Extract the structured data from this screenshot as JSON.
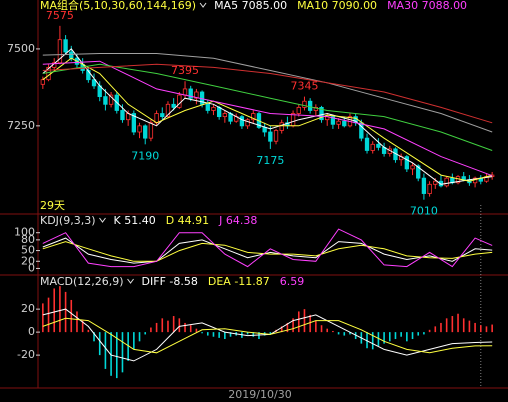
{
  "chart_data": [
    {
      "type": "candlestick",
      "title": "MA组合(5,10,30,60,144,169)",
      "footnote": "29天",
      "cursor": {
        "x": 77,
        "label": "2019/10/30"
      },
      "up_color": "#ff3030",
      "down_color": "#00d8d8",
      "ylim": [
        6970,
        7620
      ],
      "yticks": [
        7500,
        7250
      ],
      "open": [
        7385,
        7400,
        7440,
        7455,
        7530,
        7490,
        7470,
        7450,
        7430,
        7400,
        7380,
        7345,
        7320,
        7350,
        7300,
        7270,
        7290,
        7230,
        7250,
        7210,
        7260,
        7290,
        7280,
        7320,
        7310,
        7350,
        7370,
        7340,
        7360,
        7320,
        7300,
        7310,
        7280,
        7290,
        7265,
        7280,
        7250,
        7270,
        7290,
        7245,
        7230,
        7200,
        7235,
        7260,
        7250,
        7290,
        7310,
        7330,
        7300,
        7310,
        7270,
        7280,
        7255,
        7265,
        7250,
        7280,
        7260,
        7210,
        7170,
        7190,
        7180,
        7160,
        7175,
        7140,
        7150,
        7110,
        7120,
        7080,
        7030,
        7060,
        7070,
        7055,
        7080,
        7065,
        7085,
        7075,
        7065,
        7080,
        7070,
        7085
      ],
      "high": [
        7410,
        7450,
        7470,
        7575,
        7545,
        7510,
        7485,
        7470,
        7440,
        7420,
        7395,
        7370,
        7360,
        7360,
        7320,
        7300,
        7300,
        7260,
        7255,
        7270,
        7300,
        7310,
        7330,
        7340,
        7360,
        7395,
        7380,
        7370,
        7365,
        7335,
        7320,
        7315,
        7300,
        7295,
        7290,
        7285,
        7275,
        7300,
        7295,
        7260,
        7250,
        7240,
        7270,
        7280,
        7300,
        7320,
        7345,
        7340,
        7320,
        7315,
        7290,
        7285,
        7275,
        7280,
        7290,
        7290,
        7270,
        7225,
        7200,
        7210,
        7195,
        7185,
        7180,
        7160,
        7155,
        7130,
        7125,
        7095,
        7070,
        7080,
        7090,
        7085,
        7095,
        7090,
        7100,
        7090,
        7085,
        7090,
        7095,
        7100
      ],
      "low": [
        7370,
        7395,
        7425,
        7450,
        7480,
        7460,
        7440,
        7420,
        7390,
        7370,
        7330,
        7300,
        7310,
        7290,
        7260,
        7250,
        7220,
        7210,
        7190,
        7200,
        7250,
        7270,
        7275,
        7300,
        7305,
        7340,
        7330,
        7320,
        7310,
        7290,
        7285,
        7270,
        7260,
        7255,
        7260,
        7240,
        7240,
        7260,
        7240,
        7215,
        7175,
        7190,
        7225,
        7240,
        7245,
        7280,
        7300,
        7290,
        7280,
        7260,
        7250,
        7240,
        7240,
        7245,
        7245,
        7250,
        7200,
        7160,
        7160,
        7170,
        7150,
        7150,
        7130,
        7120,
        7100,
        7090,
        7070,
        7010,
        7020,
        7045,
        7050,
        7050,
        7060,
        7060,
        7070,
        7055,
        7050,
        7060,
        7065,
        7075
      ],
      "close": [
        7400,
        7440,
        7455,
        7530,
        7490,
        7470,
        7450,
        7430,
        7400,
        7380,
        7345,
        7320,
        7350,
        7300,
        7270,
        7290,
        7230,
        7250,
        7210,
        7260,
        7290,
        7280,
        7320,
        7310,
        7350,
        7370,
        7340,
        7360,
        7320,
        7300,
        7310,
        7280,
        7290,
        7265,
        7280,
        7250,
        7270,
        7290,
        7245,
        7230,
        7200,
        7235,
        7260,
        7250,
        7290,
        7310,
        7330,
        7300,
        7310,
        7270,
        7280,
        7255,
        7265,
        7250,
        7280,
        7260,
        7210,
        7170,
        7190,
        7180,
        7160,
        7175,
        7140,
        7150,
        7110,
        7120,
        7080,
        7030,
        7060,
        7070,
        7055,
        7080,
        7065,
        7085,
        7075,
        7065,
        7080,
        7070,
        7085,
        7090
      ],
      "series": [
        {
          "name": "MA5 7085.00",
          "color": "#ffffff",
          "x": [
            0,
            5,
            10,
            15,
            20,
            25,
            30,
            35,
            40,
            45,
            50,
            55,
            60,
            65,
            70,
            75,
            79
          ],
          "values": [
            7420,
            7500,
            7380,
            7290,
            7250,
            7340,
            7320,
            7270,
            7240,
            7270,
            7290,
            7265,
            7180,
            7130,
            7060,
            7075,
            7085
          ]
        },
        {
          "name": "MA10 7090.00",
          "color": "#ffff40",
          "x": [
            0,
            5,
            10,
            15,
            20,
            25,
            30,
            35,
            40,
            45,
            50,
            55,
            60,
            65,
            70,
            75,
            79
          ],
          "values": [
            7400,
            7470,
            7420,
            7320,
            7260,
            7300,
            7330,
            7290,
            7250,
            7250,
            7285,
            7275,
            7210,
            7150,
            7090,
            7070,
            7090
          ]
        },
        {
          "name": "MA30 7088.00",
          "color": "#ff40ff",
          "x": [
            0,
            10,
            20,
            30,
            40,
            50,
            60,
            70,
            79
          ],
          "values": [
            7450,
            7460,
            7370,
            7330,
            7290,
            7280,
            7240,
            7150,
            7088
          ]
        },
        {
          "color": "#40d040",
          "x": [
            0,
            10,
            20,
            30,
            40,
            50,
            60,
            70,
            79
          ],
          "values": [
            7420,
            7450,
            7420,
            7380,
            7340,
            7300,
            7280,
            7230,
            7170
          ]
        },
        {
          "color": "#a0a0a0",
          "x": [
            0,
            10,
            20,
            30,
            40,
            50,
            60,
            70,
            79
          ],
          "values": [
            7480,
            7485,
            7485,
            7470,
            7430,
            7390,
            7340,
            7290,
            7230
          ]
        },
        {
          "color": "#d03030",
          "x": [
            0,
            10,
            20,
            30,
            40,
            50,
            60,
            70,
            79
          ],
          "values": [
            7430,
            7440,
            7450,
            7440,
            7420,
            7390,
            7360,
            7310,
            7260
          ]
        }
      ],
      "annotations": [
        {
          "label": "7575",
          "value": 7575,
          "x": 3,
          "kind": "high"
        },
        {
          "label": "7395",
          "value": 7395,
          "x": 25,
          "kind": "high"
        },
        {
          "label": "7345",
          "value": 7345,
          "x": 46,
          "kind": "high"
        },
        {
          "label": "7190",
          "value": 7190,
          "x": 18,
          "kind": "low"
        },
        {
          "label": "7175",
          "value": 7175,
          "x": 40,
          "kind": "low"
        },
        {
          "label": "7010",
          "value": 7010,
          "x": 67,
          "kind": "low"
        }
      ]
    },
    {
      "type": "line",
      "title": "KDJ(9,3,3)",
      "ylim": [
        -10,
        130
      ],
      "yticks": [
        0,
        20,
        50,
        80,
        100
      ],
      "series": [
        {
          "name": "K 51.40",
          "color": "#ffffff",
          "x": [
            0,
            4,
            8,
            12,
            16,
            20,
            24,
            28,
            32,
            36,
            40,
            44,
            48,
            52,
            56,
            60,
            64,
            68,
            72,
            76,
            79
          ],
          "values": [
            60,
            85,
            40,
            25,
            15,
            20,
            70,
            80,
            55,
            30,
            45,
            35,
            30,
            75,
            70,
            40,
            25,
            35,
            20,
            55,
            51.4
          ]
        },
        {
          "name": "D 44.91",
          "color": "#ffff40",
          "x": [
            0,
            4,
            8,
            12,
            16,
            20,
            24,
            28,
            32,
            36,
            40,
            44,
            48,
            52,
            56,
            60,
            64,
            68,
            72,
            76,
            79
          ],
          "values": [
            55,
            75,
            55,
            35,
            20,
            20,
            50,
            70,
            65,
            45,
            40,
            40,
            35,
            55,
            65,
            55,
            35,
            30,
            28,
            40,
            44.91
          ]
        },
        {
          "name": "J 64.38",
          "color": "#ff40ff",
          "x": [
            0,
            4,
            8,
            12,
            16,
            20,
            24,
            28,
            32,
            36,
            40,
            44,
            48,
            52,
            56,
            60,
            64,
            68,
            72,
            76,
            79
          ],
          "values": [
            70,
            100,
            15,
            5,
            5,
            20,
            100,
            100,
            40,
            5,
            55,
            25,
            20,
            110,
            80,
            10,
            5,
            45,
            5,
            85,
            64.38
          ]
        }
      ]
    },
    {
      "type": "macd",
      "title": "MACD(12,26,9)",
      "ylim": [
        -46,
        41
      ],
      "yticks": [
        -20,
        0,
        20
      ],
      "histogram": {
        "name": "6.59",
        "color": "#ff40ff",
        "up_color": "#ff3030",
        "down_color": "#00d8d8",
        "values": [
          25,
          30,
          38,
          40,
          35,
          28,
          18,
          10,
          2,
          -8,
          -20,
          -32,
          -38,
          -40,
          -35,
          -25,
          -15,
          -8,
          -2,
          4,
          8,
          12,
          10,
          14,
          12,
          8,
          6,
          3,
          -1,
          -3,
          -4,
          -5,
          -6,
          -4,
          -3,
          -5,
          -2,
          -4,
          -6,
          -3,
          -2,
          2,
          5,
          8,
          12,
          18,
          20,
          15,
          10,
          6,
          3,
          1,
          -2,
          -3,
          -2,
          -6,
          -10,
          -14,
          -15,
          -12,
          -10,
          -8,
          -6,
          -4,
          -8,
          -6,
          -3,
          -2,
          2,
          5,
          8,
          12,
          14,
          16,
          12,
          10,
          8,
          6,
          5,
          6.59
        ]
      },
      "series": [
        {
          "name": "DIFF -8.58",
          "color": "#ffffff",
          "x": [
            0,
            4,
            8,
            12,
            16,
            20,
            24,
            28,
            32,
            36,
            40,
            44,
            48,
            52,
            56,
            60,
            64,
            68,
            72,
            76,
            79
          ],
          "values": [
            15,
            20,
            5,
            -20,
            -25,
            -15,
            5,
            8,
            0,
            -3,
            -2,
            10,
            15,
            5,
            -5,
            -15,
            -20,
            -15,
            -10,
            -9,
            -8.58
          ]
        },
        {
          "name": "DEA -11.87",
          "color": "#ffff40",
          "x": [
            0,
            4,
            8,
            12,
            16,
            20,
            24,
            28,
            32,
            36,
            40,
            44,
            48,
            52,
            56,
            60,
            64,
            68,
            72,
            76,
            79
          ],
          "values": [
            5,
            12,
            10,
            -2,
            -15,
            -18,
            -8,
            2,
            3,
            0,
            -2,
            3,
            10,
            10,
            2,
            -8,
            -15,
            -18,
            -14,
            -12,
            -11.87
          ]
        }
      ]
    }
  ]
}
